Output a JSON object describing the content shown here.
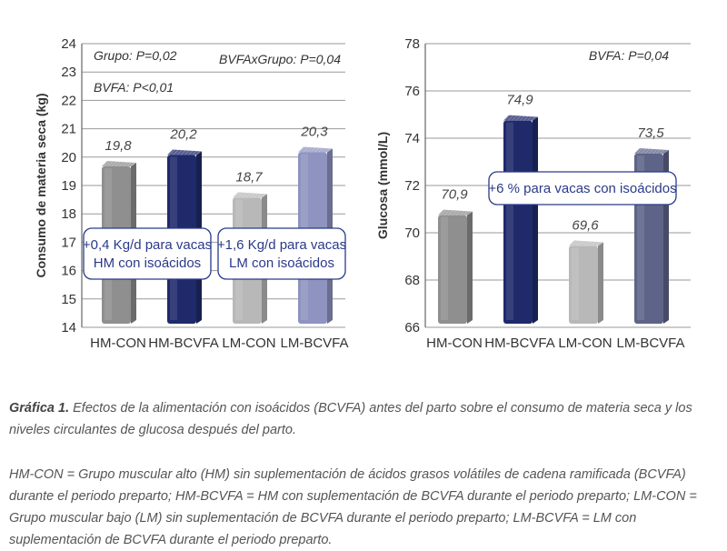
{
  "chart_data": [
    {
      "type": "bar",
      "ylabel": "Consumo de materia seca (kg)",
      "ylim": [
        14,
        24
      ],
      "yticks": [
        14,
        15,
        16,
        17,
        18,
        19,
        20,
        21,
        22,
        23,
        24
      ],
      "categories": [
        "HM-CON",
        "HM-BCVFA",
        "LM-CON",
        "LM-BCVFA"
      ],
      "values": [
        19.8,
        20.2,
        18.7,
        20.3
      ],
      "value_labels": [
        "19,8",
        "20,2",
        "18,7",
        "20,3"
      ],
      "bar_colors": [
        "#8f8f8f",
        "#1f2a6b",
        "#b8b8b8",
        "#8e93bf"
      ],
      "stats": [
        "Grupo: P=0,02",
        "BVFAxGrupo: P=0,04",
        "BVFA: P<0,01"
      ],
      "annotations": [
        {
          "lines": [
            "+0,4 Kg/d para vacas",
            "HM con isoácidos"
          ]
        },
        {
          "lines": [
            "+1,6 Kg/d para vacas",
            "LM con isoácidos"
          ]
        }
      ]
    },
    {
      "type": "bar",
      "ylabel": "Glucosa (mmol/L)",
      "ylim": [
        66,
        78
      ],
      "yticks": [
        66,
        68,
        70,
        72,
        74,
        76,
        78
      ],
      "categories": [
        "HM-CON",
        "HM-BCVFA",
        "LM-CON",
        "LM-BCVFA"
      ],
      "values": [
        70.9,
        74.9,
        69.6,
        73.5
      ],
      "value_labels": [
        "70,9",
        "74,9",
        "69,6",
        "73,5"
      ],
      "bar_colors": [
        "#8f8f8f",
        "#1f2a6b",
        "#b8b8b8",
        "#5e6488"
      ],
      "stats": [
        "BVFA: P=0,04"
      ],
      "annotations": [
        {
          "lines": [
            "+6 % para vacas con isoácidos"
          ]
        }
      ]
    }
  ],
  "caption": {
    "title": "Gráfica 1.",
    "text": "Efectos de la alimentación con isoácidos (BCVFA) antes del parto sobre el consumo de materia seca y los niveles circulantes de glucosa después del parto.",
    "legend": "HM-CON = Grupo muscular alto (HM) sin suplementación de ácidos grasos volátiles de cadena ramificada (BCVFA) durante el periodo preparto; HM-BCVFA = HM con suplementación de BCVFA durante el periodo preparto; LM-CON = Grupo muscular bajo (LM) sin suplementación de BCVFA durante el periodo preparto; LM-BCVFA = LM con suplementación de BCVFA durante el periodo preparto."
  }
}
